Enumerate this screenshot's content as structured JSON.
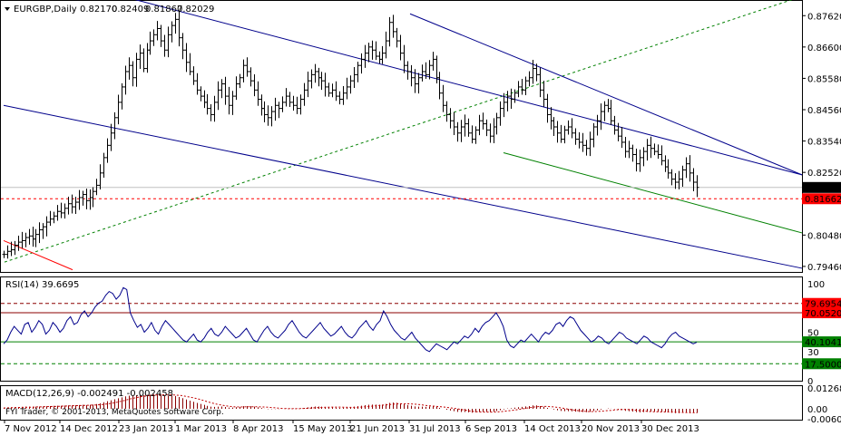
{
  "chart_data": [
    {
      "type": "candlestick",
      "title": "EURGBP,Daily",
      "ohlc_header": [
        "0.82170",
        "0.82409",
        "0.81867",
        "0.82029"
      ],
      "x_tick_labels": [
        "7 Nov 2012",
        "14 Dec 2012",
        "23 Jan 2013",
        "1 Mar 2013",
        "8 Apr 2013",
        "15 May 2013",
        "21 Jun 2013",
        "31 Jul 2013",
        "6 Sep 2013",
        "14 Oct 2013",
        "20 Nov 2013",
        "30 Dec 2013"
      ],
      "y_tick_labels": [
        "0.87620",
        "0.86600",
        "0.85580",
        "0.84560",
        "0.83540",
        "0.82520",
        "0.80480",
        "0.79460"
      ],
      "ylim": [
        0.7928,
        0.881
      ],
      "current_price": "0.82029",
      "marked_level": "0.81662",
      "close_series": [
        0.7985,
        0.7995,
        0.8,
        0.8015,
        0.8025,
        0.803,
        0.804,
        0.8045,
        0.8035,
        0.805,
        0.8065,
        0.8075,
        0.809,
        0.81,
        0.811,
        0.8125,
        0.812,
        0.8135,
        0.815,
        0.814,
        0.8155,
        0.817,
        0.818,
        0.816,
        0.817,
        0.819,
        0.821,
        0.825,
        0.83,
        0.834,
        0.838,
        0.843,
        0.848,
        0.853,
        0.858,
        0.86,
        0.856,
        0.862,
        0.864,
        0.859,
        0.865,
        0.868,
        0.87,
        0.872,
        0.868,
        0.865,
        0.87,
        0.873,
        0.875,
        0.869,
        0.865,
        0.861,
        0.858,
        0.855,
        0.852,
        0.85,
        0.848,
        0.846,
        0.844,
        0.848,
        0.852,
        0.854,
        0.85,
        0.847,
        0.85,
        0.854,
        0.856,
        0.86,
        0.858,
        0.855,
        0.852,
        0.849,
        0.846,
        0.844,
        0.843,
        0.845,
        0.847,
        0.846,
        0.848,
        0.85,
        0.848,
        0.847,
        0.846,
        0.849,
        0.852,
        0.855,
        0.857,
        0.858,
        0.856,
        0.855,
        0.853,
        0.851,
        0.852,
        0.85,
        0.849,
        0.851,
        0.853,
        0.855,
        0.857,
        0.86,
        0.862,
        0.864,
        0.866,
        0.865,
        0.863,
        0.862,
        0.864,
        0.868,
        0.874,
        0.871,
        0.868,
        0.864,
        0.86,
        0.858,
        0.856,
        0.854,
        0.856,
        0.858,
        0.857,
        0.86,
        0.862,
        0.856,
        0.851,
        0.847,
        0.844,
        0.842,
        0.84,
        0.838,
        0.84,
        0.841,
        0.838,
        0.836,
        0.839,
        0.842,
        0.841,
        0.839,
        0.837,
        0.84,
        0.843,
        0.846,
        0.848,
        0.85,
        0.849,
        0.851,
        0.853,
        0.852,
        0.855,
        0.856,
        0.859,
        0.857,
        0.852,
        0.849,
        0.844,
        0.842,
        0.84,
        0.838,
        0.836,
        0.839,
        0.84,
        0.838,
        0.836,
        0.835,
        0.834,
        0.833,
        0.836,
        0.84,
        0.842,
        0.845,
        0.847,
        0.846,
        0.842,
        0.839,
        0.837,
        0.835,
        0.832,
        0.833,
        0.831,
        0.828,
        0.83,
        0.832,
        0.834,
        0.833,
        0.832,
        0.831,
        0.829,
        0.827,
        0.825,
        0.823,
        0.822,
        0.823,
        0.826,
        0.828,
        0.825,
        0.822,
        0.8203
      ]
    },
    {
      "type": "line",
      "title": "RSI(14) 39.6695",
      "y_tick_labels": [
        "100",
        "70",
        "50",
        "30",
        "0"
      ],
      "ylim": [
        0,
        100
      ],
      "levels": [
        "79.69543",
        "70.05208",
        "40.10417",
        "17.50000"
      ],
      "series": [
        {
          "name": "RSI(14)",
          "values": [
            38,
            42,
            50,
            56,
            52,
            48,
            58,
            60,
            50,
            55,
            62,
            58,
            48,
            52,
            60,
            56,
            50,
            54,
            62,
            66,
            58,
            60,
            68,
            72,
            66,
            70,
            76,
            80,
            82,
            88,
            92,
            90,
            84,
            88,
            96,
            94,
            70,
            62,
            55,
            58,
            50,
            54,
            60,
            52,
            48,
            56,
            62,
            58,
            54,
            50,
            46,
            42,
            40,
            44,
            48,
            42,
            40,
            44,
            50,
            54,
            48,
            46,
            50,
            56,
            52,
            48,
            44,
            46,
            50,
            54,
            48,
            42,
            40,
            46,
            52,
            56,
            50,
            46,
            44,
            48,
            52,
            58,
            62,
            56,
            50,
            46,
            44,
            48,
            52,
            56,
            60,
            54,
            50,
            46,
            48,
            52,
            56,
            50,
            46,
            44,
            48,
            54,
            58,
            62,
            56,
            52,
            58,
            62,
            72,
            66,
            58,
            52,
            48,
            44,
            42,
            46,
            50,
            44,
            40,
            36,
            32,
            30,
            34,
            38,
            36,
            34,
            32,
            36,
            40,
            38,
            42,
            46,
            44,
            48,
            54,
            50,
            56,
            60,
            62,
            66,
            70,
            64,
            56,
            42,
            36,
            34,
            38,
            42,
            40,
            44,
            48,
            44,
            40,
            46,
            50,
            48,
            52,
            58,
            60,
            56,
            62,
            66,
            64,
            58,
            52,
            48,
            44,
            40,
            42,
            46,
            44,
            40,
            38,
            42,
            46,
            50,
            48,
            44,
            42,
            40,
            38,
            42,
            46,
            44,
            40,
            38,
            36,
            34,
            38,
            44,
            48,
            50,
            46,
            44,
            42,
            40,
            38,
            39.6695
          ]
        }
      ]
    },
    {
      "type": "bar",
      "title": "MACD(12,26,9) -0.002491 -0.002458",
      "y_tick_labels": [
        "0.01268",
        "0.00",
        "-0.006025"
      ],
      "ylim": [
        -0.006025,
        0.01268
      ],
      "series": [
        {
          "name": "MACD",
          "values": [
            0.0005,
            0.0007,
            0.0009,
            0.001,
            0.0011,
            0.0012,
            0.0013,
            0.0013,
            0.0012,
            0.0013,
            0.0014,
            0.0015,
            0.0016,
            0.0017,
            0.0018,
            0.0019,
            0.0019,
            0.002,
            0.0021,
            0.0021,
            0.0022,
            0.0023,
            0.0024,
            0.0023,
            0.0024,
            0.0026,
            0.0029,
            0.0034,
            0.004,
            0.0046,
            0.0052,
            0.0058,
            0.0064,
            0.007,
            0.0076,
            0.008,
            0.0079,
            0.0083,
            0.0086,
            0.0083,
            0.0085,
            0.0087,
            0.0089,
            0.009,
            0.0086,
            0.0081,
            0.008,
            0.0079,
            0.0078,
            0.0072,
            0.0065,
            0.0057,
            0.005,
            0.0043,
            0.0036,
            0.003,
            0.0024,
            0.0018,
            0.0013,
            0.0012,
            0.0013,
            0.0014,
            0.0011,
            0.0008,
            0.0008,
            0.001,
            0.0012,
            0.0016,
            0.0017,
            0.0016,
            0.0013,
            0.0009,
            0.0005,
            0.0001,
            -0.0002,
            -0.0002,
            -0.0001,
            -0.0001,
            0.0001,
            0.0003,
            0.0003,
            0.0003,
            0.0002,
            0.0004,
            0.0006,
            0.0009,
            0.0012,
            0.0014,
            0.0014,
            0.0013,
            0.0011,
            0.0009,
            0.0009,
            0.0007,
            0.0006,
            0.0007,
            0.0009,
            0.0011,
            0.0013,
            0.0016,
            0.0019,
            0.0022,
            0.0025,
            0.0026,
            0.0026,
            0.0025,
            0.0026,
            0.003,
            0.0036,
            0.0038,
            0.0037,
            0.0033,
            0.0028,
            0.0023,
            0.0019,
            0.0015,
            0.0013,
            0.0013,
            0.0012,
            0.0014,
            0.0016,
            0.0012,
            0.0006,
            0.0,
            -0.0005,
            -0.001,
            -0.0014,
            -0.0018,
            -0.0019,
            -0.0019,
            -0.0021,
            -0.0023,
            -0.0022,
            -0.0019,
            -0.0018,
            -0.0018,
            -0.0019,
            -0.0017,
            -0.0013,
            -0.0008,
            -0.0003,
            0.0002,
            0.0004,
            0.0007,
            0.001,
            0.0012,
            0.0015,
            0.0017,
            0.0021,
            0.0021,
            0.0017,
            0.0013,
            0.0006,
            0.0001,
            -0.0004,
            -0.0009,
            -0.0013,
            -0.0014,
            -0.0014,
            -0.0015,
            -0.0017,
            -0.0018,
            -0.0019,
            -0.002,
            -0.0018,
            -0.0013,
            -0.0009,
            -0.0004,
            0.0,
            0.0002,
            0.0001,
            -0.0002,
            -0.0005,
            -0.0008,
            -0.0012,
            -0.0014,
            -0.0016,
            -0.002,
            -0.0021,
            -0.002,
            -0.0018,
            -0.0017,
            -0.0017,
            -0.0017,
            -0.0018,
            -0.002,
            -0.0022,
            -0.0024,
            -0.0026,
            -0.0026,
            -0.0024,
            -0.0022,
            -0.0023,
            -0.0024,
            -0.0025
          ]
        }
      ]
    }
  ],
  "footer_text": "FYI Trader, © 2001-2013, MetaQuotes Software Corp.",
  "colors": {
    "candle": "#000000",
    "channel": "#00008b",
    "support": "#008000",
    "red_line": "#ff0000",
    "dotted_up": "#008000",
    "rsi_line": "#00008b",
    "macd_bar": "#8b0000",
    "tag_black": "#000000",
    "tag_red": "#ff0000"
  }
}
